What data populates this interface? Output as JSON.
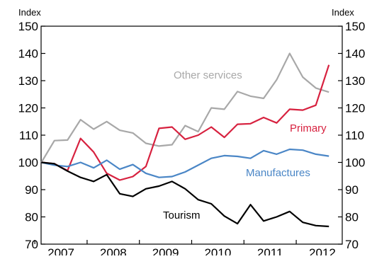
{
  "chart_data": {
    "type": "line",
    "y_unit_left": "Index",
    "y_unit_right": "Index",
    "ylim": [
      70,
      150
    ],
    "yticks": [
      70,
      80,
      90,
      100,
      110,
      120,
      130,
      140,
      150
    ],
    "xlim": [
      2006.62,
      2012.38
    ],
    "xticks": [
      {
        "label": "2007",
        "x": 2007
      },
      {
        "label": "2008",
        "x": 2008
      },
      {
        "label": "2009",
        "x": 2009
      },
      {
        "label": "2010",
        "x": 2010
      },
      {
        "label": "2011",
        "x": 2011
      },
      {
        "label": "2012",
        "x": 2012
      }
    ],
    "grid": false,
    "legend": "inline labels",
    "x": [
      2006.625,
      2006.875,
      2007.125,
      2007.375,
      2007.625,
      2007.875,
      2008.125,
      2008.375,
      2008.625,
      2008.875,
      2009.125,
      2009.375,
      2009.625,
      2009.875,
      2010.125,
      2010.375,
      2010.625,
      2010.875,
      2011.125,
      2011.375,
      2011.625,
      2011.875,
      2012.125,
      2012.375
    ],
    "series": [
      {
        "name": "Other services",
        "color": "#a8a8a8",
        "values": [
          100,
          108,
          108.2,
          115.7,
          112.2,
          115,
          111.8,
          110.8,
          107,
          106,
          106.5,
          113.5,
          111.3,
          120,
          119.5,
          126,
          124.3,
          123.5,
          130.3,
          140,
          131.3,
          127.3,
          125.8,
          null
        ]
      },
      {
        "name": "Primary",
        "color": "#d7213f",
        "values": [
          100,
          99.5,
          97,
          108.8,
          103.8,
          96,
          93.5,
          94.8,
          98.5,
          112.5,
          113,
          108.5,
          110,
          113,
          109.2,
          114,
          114.2,
          116.5,
          114.5,
          119.5,
          119.2,
          121,
          135.8,
          null
        ]
      },
      {
        "name": "Manufactures",
        "color": "#4a86c6",
        "values": [
          100,
          99,
          98.5,
          100,
          98,
          100.8,
          97.5,
          99.2,
          96,
          94.5,
          94.8,
          96.5,
          99,
          101.5,
          102.5,
          102.2,
          101.5,
          104.3,
          103,
          104.8,
          104.5,
          103,
          102.3,
          null
        ]
      },
      {
        "name": "Tourism",
        "color": "#000000",
        "values": [
          100,
          99.5,
          96.8,
          94.5,
          93,
          95.5,
          88.5,
          87.5,
          90.3,
          91.3,
          93,
          90.3,
          86.3,
          84.8,
          80.3,
          77.5,
          84.5,
          78.5,
          80,
          82,
          78,
          76.8,
          76.5,
          null
        ]
      }
    ]
  }
}
